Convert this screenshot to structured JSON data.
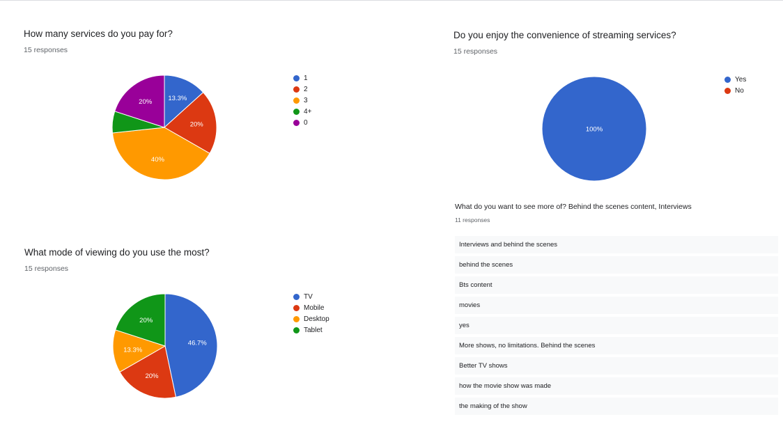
{
  "colors": {
    "blue": "#3366cc",
    "red": "#dc3912",
    "orange": "#ff9900",
    "green": "#109618",
    "purple": "#990099"
  },
  "q1": {
    "title": "How many services do you pay for?",
    "responses": "15 responses"
  },
  "q2": {
    "title": "Do you enjoy the convenience of streaming services?",
    "responses": "15 responses"
  },
  "q3": {
    "title": "What mode of viewing do you use the most?",
    "responses": "15 responses"
  },
  "q4": {
    "title": "What do you want to see more of? Behind the scenes content, Interviews",
    "responses": "11 responses",
    "answers": [
      "Interviews and behind the scenes",
      "behind the scenes",
      "Bts content",
      "movies",
      "yes",
      "More shows, no limitations. Behind the scenes",
      "Better TV shows",
      "how the movie show was made",
      "the making of the show"
    ]
  },
  "chart_data": [
    {
      "type": "pie",
      "title": "How many services do you pay for?",
      "categories": [
        "1",
        "2",
        "3",
        "4+",
        "0"
      ],
      "values": [
        13.3,
        20,
        40,
        6.7,
        20
      ],
      "labels": [
        "13.3%",
        "20%",
        "40%",
        "",
        "20%"
      ],
      "colors": [
        "#3366cc",
        "#dc3912",
        "#ff9900",
        "#109618",
        "#990099"
      ],
      "legend": "right"
    },
    {
      "type": "pie",
      "title": "Do you enjoy the convenience of streaming services?",
      "categories": [
        "Yes",
        "No"
      ],
      "values": [
        100,
        0
      ],
      "labels": [
        "100%",
        ""
      ],
      "colors": [
        "#3366cc",
        "#dc3912"
      ],
      "legend": "right"
    },
    {
      "type": "pie",
      "title": "What mode of viewing do you use the most?",
      "categories": [
        "TV",
        "Mobile",
        "Desktop",
        "Tablet"
      ],
      "values": [
        46.7,
        20,
        13.3,
        20
      ],
      "labels": [
        "46.7%",
        "20%",
        "13.3%",
        "20%"
      ],
      "colors": [
        "#3366cc",
        "#dc3912",
        "#ff9900",
        "#109618"
      ],
      "legend": "right"
    }
  ]
}
